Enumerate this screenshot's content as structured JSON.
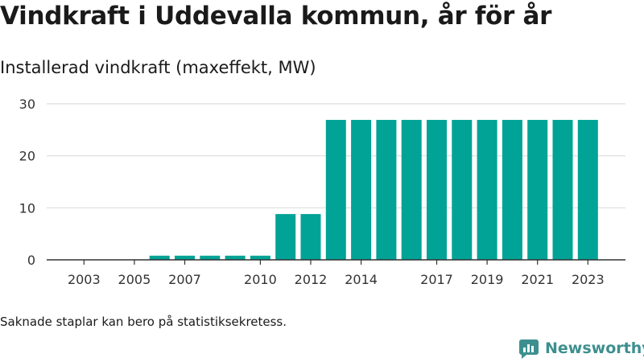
{
  "header": {
    "title": "Vindkraft i Uddevalla kommun, år för år",
    "subtitle": "Installerad vindkraft (maxeffekt, MW)"
  },
  "footer": {
    "note": "Saknade staplar kan bero på statistiksekretess.",
    "brand": "Newsworthy"
  },
  "colors": {
    "bar": "#00a396",
    "grid": "#dddddd",
    "axis": "#333333",
    "brand": "#3d8f8f"
  },
  "chart_data": {
    "type": "bar",
    "title": "Vindkraft i Uddevalla kommun, år för år",
    "subtitle": "Installerad vindkraft (maxeffekt, MW)",
    "xlabel": "",
    "ylabel": "",
    "ylim": [
      0,
      30
    ],
    "yticks": [
      0,
      10,
      20,
      30
    ],
    "xticks": [
      2003,
      2005,
      2007,
      2010,
      2012,
      2014,
      2017,
      2019,
      2021,
      2023
    ],
    "grid": true,
    "legend": "none",
    "categories": [
      2002,
      2003,
      2004,
      2005,
      2006,
      2007,
      2008,
      2009,
      2010,
      2011,
      2012,
      2013,
      2014,
      2015,
      2016,
      2017,
      2018,
      2019,
      2020,
      2021,
      2022,
      2023
    ],
    "values": [
      0,
      0,
      0,
      0,
      0.8,
      0.8,
      0.8,
      0.8,
      0.8,
      8.8,
      8.8,
      26.9,
      26.9,
      26.9,
      26.9,
      26.9,
      26.9,
      26.9,
      26.9,
      26.9,
      26.9,
      26.9
    ]
  }
}
